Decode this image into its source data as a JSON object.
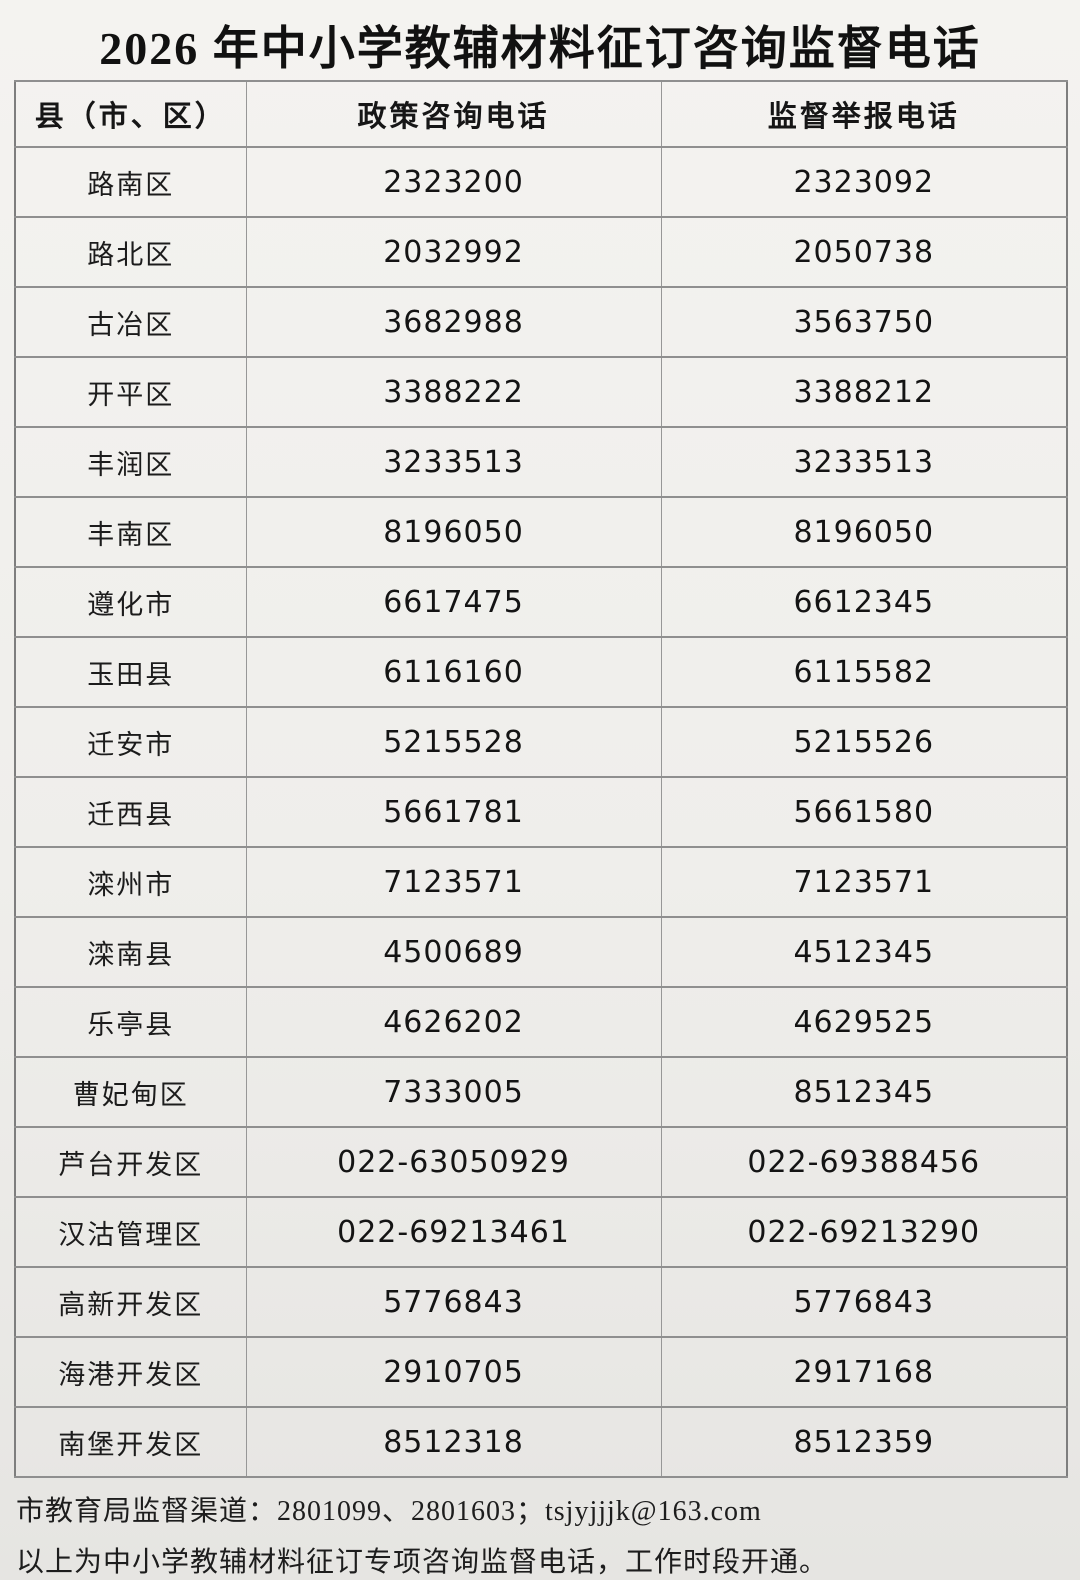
{
  "title": "2026 年中小学教辅材料征订咨询监督电话",
  "table": {
    "headers": [
      "县（市、区）",
      "政策咨询电话",
      "监督举报电话"
    ],
    "rows": [
      [
        "路南区",
        "2323200",
        "2323092"
      ],
      [
        "路北区",
        "2032992",
        "2050738"
      ],
      [
        "古冶区",
        "3682988",
        "3563750"
      ],
      [
        "开平区",
        "3388222",
        "3388212"
      ],
      [
        "丰润区",
        "3233513",
        "3233513"
      ],
      [
        "丰南区",
        "8196050",
        "8196050"
      ],
      [
        "遵化市",
        "6617475",
        "6612345"
      ],
      [
        "玉田县",
        "6116160",
        "6115582"
      ],
      [
        "迁安市",
        "5215528",
        "5215526"
      ],
      [
        "迁西县",
        "5661781",
        "5661580"
      ],
      [
        "滦州市",
        "7123571",
        "7123571"
      ],
      [
        "滦南县",
        "4500689",
        "4512345"
      ],
      [
        "乐亭县",
        "4626202",
        "4629525"
      ],
      [
        "曹妃甸区",
        "7333005",
        "8512345"
      ],
      [
        "芦台开发区",
        "022-63050929",
        "022-69388456"
      ],
      [
        "汉沽管理区",
        "022-69213461",
        "022-69213290"
      ],
      [
        "高新开发区",
        "5776843",
        "5776843"
      ],
      [
        "海港开发区",
        "2910705",
        "2917168"
      ],
      [
        "南堡开发区",
        "8512318",
        "8512359"
      ]
    ]
  },
  "footer": {
    "line1": "市教育局监督渠道：2801099、2801603；tsjyjjjk@163.com",
    "line2": "以上为中小学教辅材料征订专项咨询监督电话，工作时段开通。"
  },
  "colors": {
    "page_background_top": "#f4f3f0",
    "page_background_bottom": "#e6e5e2",
    "border": "#8f8f8f",
    "text": "#1b1b1b"
  }
}
